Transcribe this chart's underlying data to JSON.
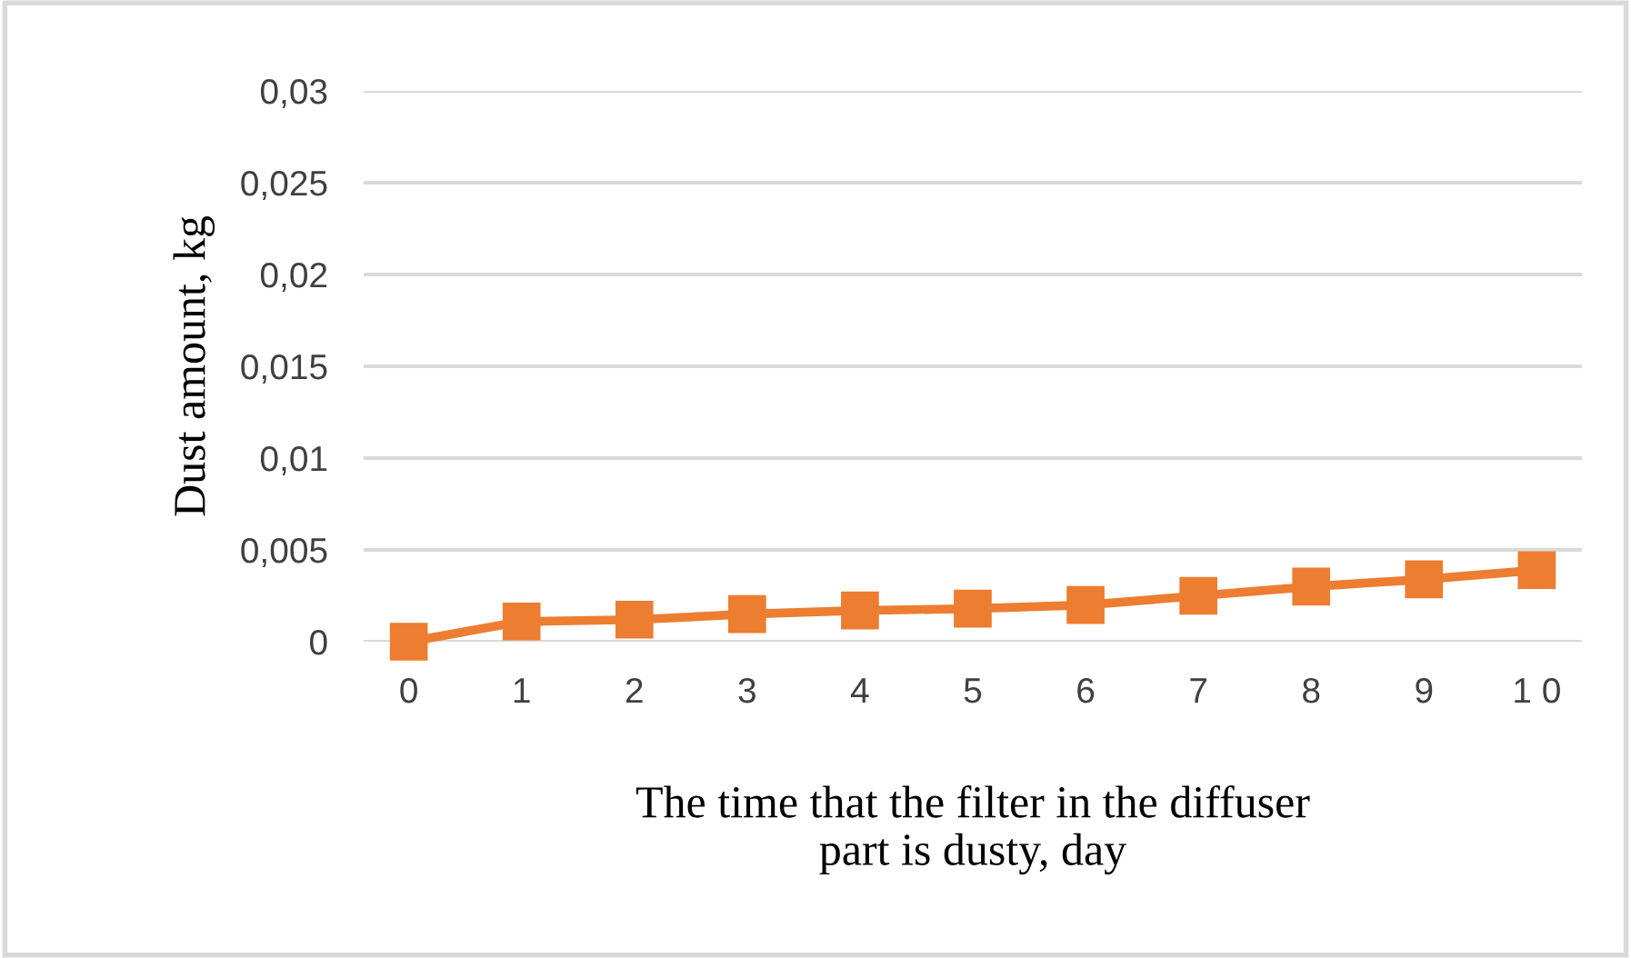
{
  "chart_data": {
    "type": "line",
    "xlabel": "The time that the filter in the diffuser\npart is dusty, day",
    "ylabel": "Dust amount, kg",
    "categories": [
      "0",
      "1",
      "2",
      "3",
      "4",
      "5",
      "6",
      "7",
      "8",
      "9",
      "1 0"
    ],
    "series": [
      {
        "color": "#ed7d31",
        "values": [
          0,
          0.0011,
          0.0012,
          0.0015,
          0.0017,
          0.0018,
          0.002,
          0.0025,
          0.003,
          0.0034,
          0.0039
        ]
      }
    ],
    "ylim": [
      0,
      0.03
    ],
    "yticks": [
      {
        "value": 0,
        "label": "0"
      },
      {
        "value": 0.005,
        "label": "0,005"
      },
      {
        "value": 0.01,
        "label": "0,01"
      },
      {
        "value": 0.015,
        "label": "0,015"
      },
      {
        "value": 0.02,
        "label": "0,02"
      },
      {
        "value": 0.025,
        "label": "0,025"
      },
      {
        "value": 0.03,
        "label": "0,03"
      }
    ],
    "grid": "y",
    "marker": "square",
    "line_style": "solid",
    "legend": false
  }
}
